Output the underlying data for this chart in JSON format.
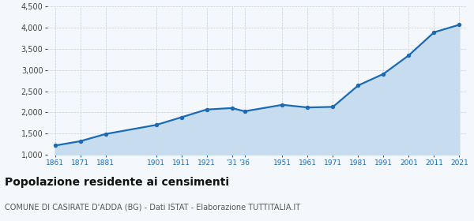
{
  "years": [
    1861,
    1871,
    1881,
    1901,
    1911,
    1921,
    1931,
    1936,
    1951,
    1961,
    1971,
    1981,
    1991,
    2001,
    2011,
    2021
  ],
  "population": [
    1216,
    1319,
    1489,
    1703,
    1884,
    2068,
    2103,
    2026,
    2179,
    2117,
    2131,
    2638,
    2910,
    3349,
    3893,
    4072
  ],
  "ylim": [
    1000,
    4500
  ],
  "yticks": [
    1000,
    1500,
    2000,
    2500,
    3000,
    3500,
    4000,
    4500
  ],
  "xtick_positions": [
    1861,
    1871,
    1881,
    1901,
    1911,
    1921,
    1931,
    1936,
    1951,
    1961,
    1971,
    1981,
    1991,
    2001,
    2011,
    2021
  ],
  "xtick_labels": [
    "1861",
    "1871",
    "1881",
    "1901",
    "1911",
    "1921",
    "'31",
    "'36",
    "1951",
    "1961",
    "1971",
    "1981",
    "1991",
    "2001",
    "2011",
    "2021"
  ],
  "line_color": "#1a6ab5",
  "fill_color": "#c8dcf0",
  "marker_color": "#1a6ab5",
  "bg_color": "#f4f8fc",
  "grid_color": "#c5cdd8",
  "title": "Popolazione residente ai censimenti",
  "subtitle": "COMUNE DI CASIRATE D'ADDA (BG) - Dati ISTAT - Elaborazione TUTTITALIA.IT",
  "title_fontsize": 10,
  "subtitle_fontsize": 7
}
